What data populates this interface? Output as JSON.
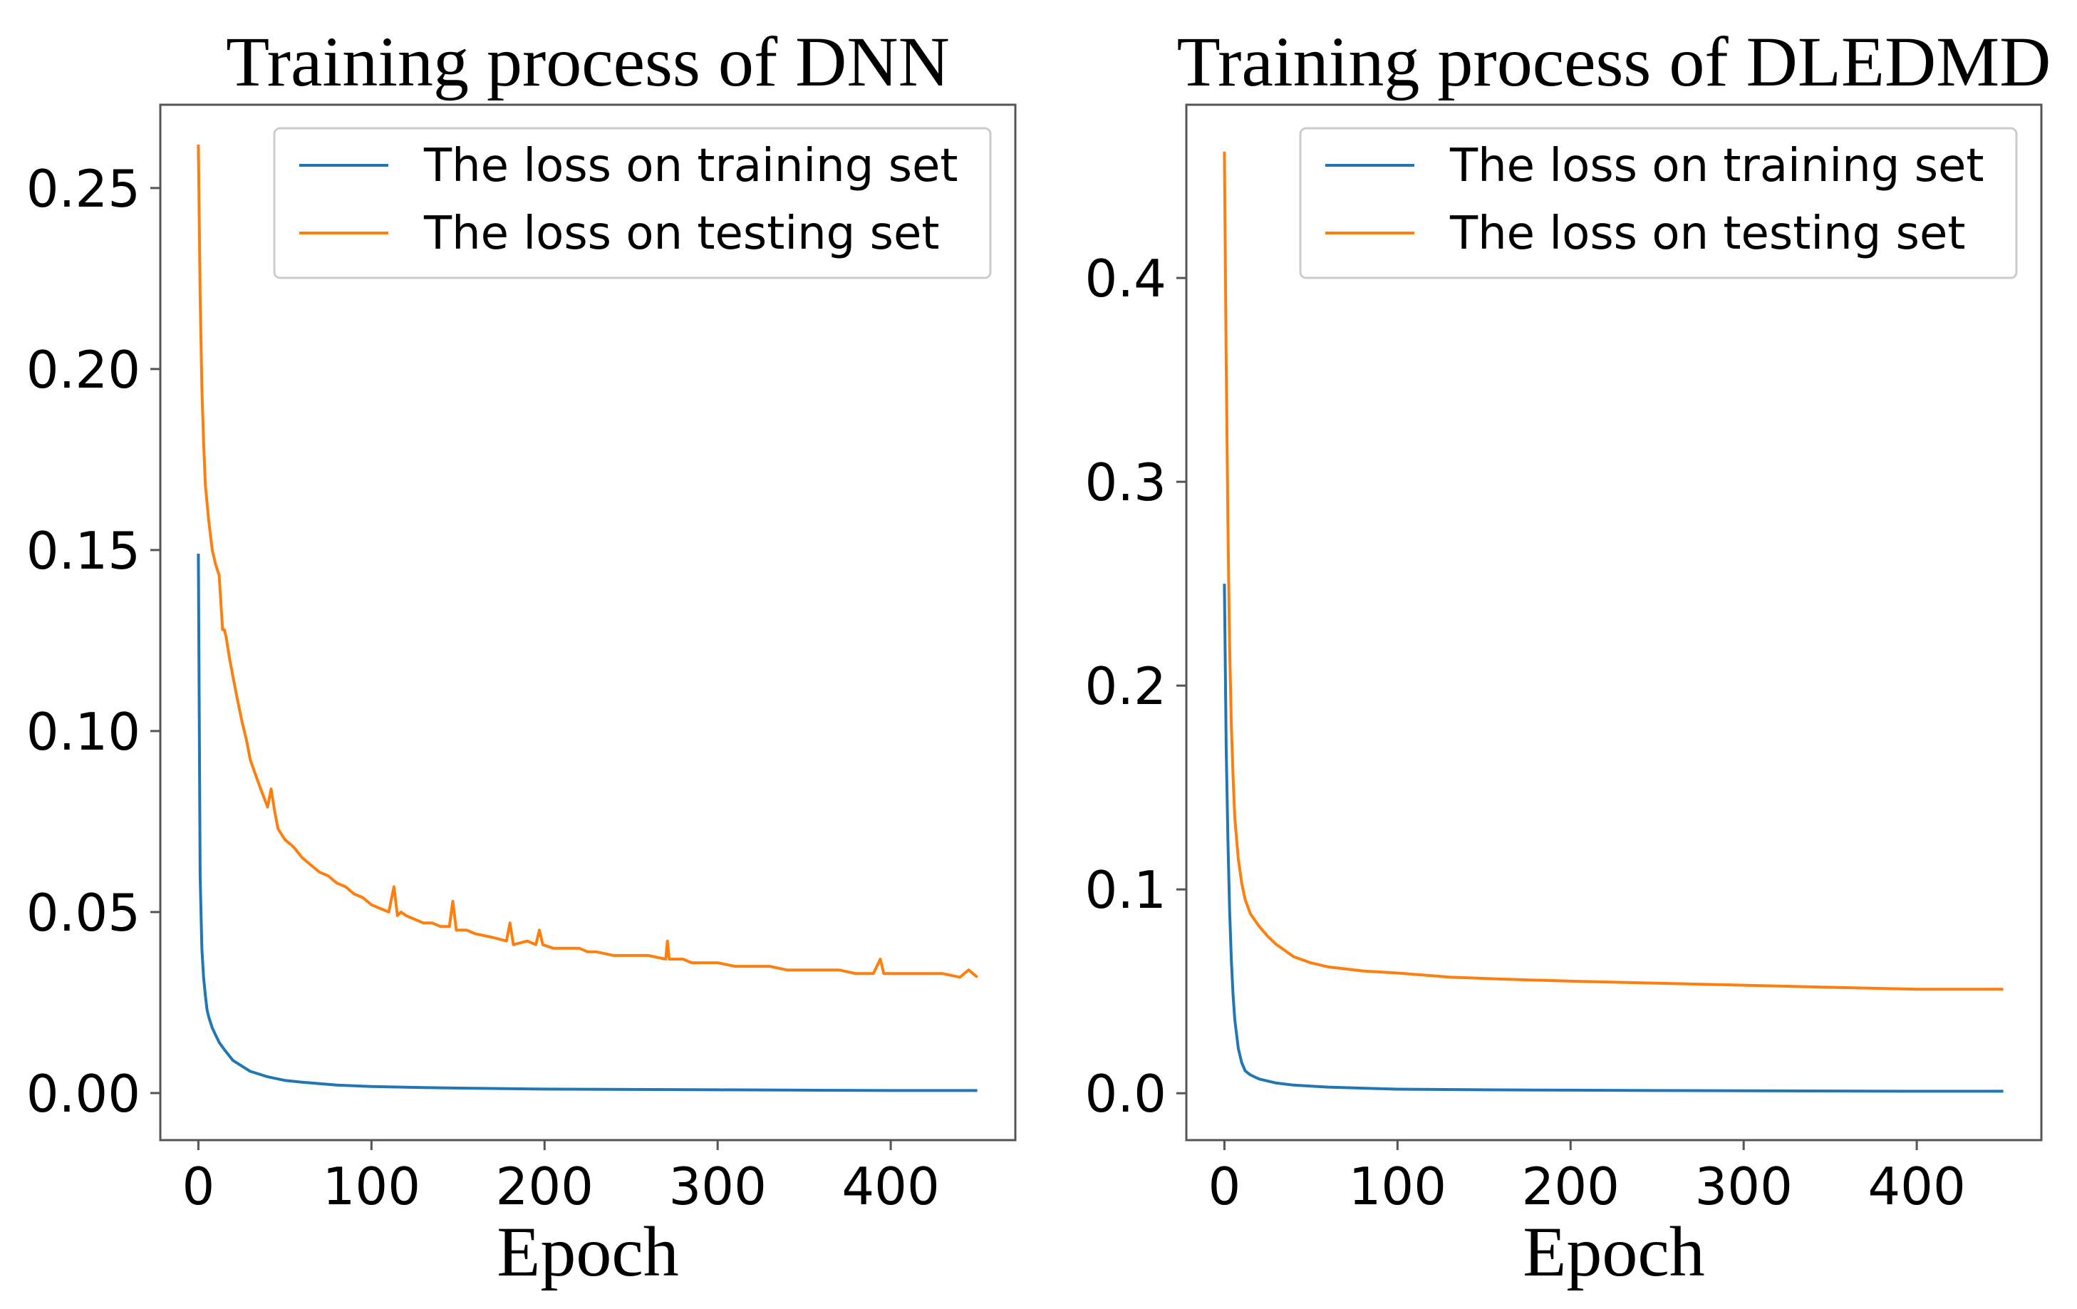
{
  "chart_data": [
    {
      "type": "line",
      "title": "Training process of DNN",
      "xlabel": "Epoch",
      "ylabel": "",
      "xlim": [
        -22,
        472
      ],
      "ylim": [
        -0.013,
        0.273
      ],
      "xticks": [
        0,
        100,
        200,
        300,
        400
      ],
      "xtick_labels": [
        "0",
        "100",
        "200",
        "300",
        "400"
      ],
      "yticks": [
        0.0,
        0.05,
        0.1,
        0.15,
        0.2,
        0.25
      ],
      "ytick_labels": [
        "0.00",
        "0.05",
        "0.10",
        "0.15",
        "0.20",
        "0.25"
      ],
      "legend_position": "top-right",
      "grid": false,
      "series": [
        {
          "name": "The loss on training set",
          "color": "#1f77b4",
          "x": [
            0,
            1,
            2,
            3,
            4,
            5,
            6,
            8,
            10,
            12,
            15,
            20,
            25,
            30,
            40,
            50,
            60,
            80,
            100,
            130,
            160,
            200,
            250,
            300,
            350,
            400,
            450
          ],
          "y": [
            0.149,
            0.06,
            0.04,
            0.032,
            0.027,
            0.023,
            0.021,
            0.018,
            0.016,
            0.014,
            0.012,
            0.009,
            0.0075,
            0.006,
            0.0045,
            0.0035,
            0.003,
            0.0022,
            0.0018,
            0.0015,
            0.0013,
            0.0011,
            0.001,
            0.0009,
            0.0008,
            0.0007,
            0.0007
          ]
        },
        {
          "name": "The loss on testing set",
          "color": "#ff7f0e",
          "x": [
            0,
            1,
            2,
            3,
            4,
            6,
            8,
            10,
            12,
            14,
            15,
            16,
            18,
            20,
            22,
            25,
            28,
            30,
            33,
            36,
            40,
            42,
            44,
            46,
            50,
            55,
            60,
            65,
            70,
            75,
            80,
            85,
            90,
            95,
            100,
            105,
            110,
            113,
            115,
            117,
            120,
            125,
            130,
            135,
            140,
            145,
            147,
            149,
            155,
            160,
            170,
            178,
            180,
            182,
            190,
            195,
            197,
            199,
            205,
            210,
            220,
            225,
            230,
            240,
            250,
            260,
            270,
            271,
            272,
            280,
            285,
            290,
            300,
            310,
            320,
            330,
            340,
            350,
            360,
            370,
            380,
            390,
            394,
            396,
            398,
            400,
            410,
            420,
            430,
            440,
            445,
            450
          ],
          "y": [
            0.262,
            0.22,
            0.195,
            0.18,
            0.168,
            0.158,
            0.15,
            0.146,
            0.143,
            0.128,
            0.128,
            0.126,
            0.12,
            0.115,
            0.11,
            0.103,
            0.097,
            0.092,
            0.088,
            0.084,
            0.079,
            0.084,
            0.078,
            0.073,
            0.07,
            0.068,
            0.065,
            0.063,
            0.061,
            0.06,
            0.058,
            0.057,
            0.055,
            0.054,
            0.052,
            0.051,
            0.05,
            0.057,
            0.049,
            0.05,
            0.049,
            0.048,
            0.047,
            0.047,
            0.046,
            0.046,
            0.053,
            0.045,
            0.045,
            0.044,
            0.043,
            0.042,
            0.047,
            0.041,
            0.042,
            0.041,
            0.045,
            0.041,
            0.04,
            0.04,
            0.04,
            0.039,
            0.039,
            0.038,
            0.038,
            0.038,
            0.037,
            0.042,
            0.037,
            0.037,
            0.036,
            0.036,
            0.036,
            0.035,
            0.035,
            0.035,
            0.034,
            0.034,
            0.034,
            0.034,
            0.033,
            0.033,
            0.037,
            0.033,
            0.033,
            0.033,
            0.033,
            0.033,
            0.033,
            0.032,
            0.034,
            0.032
          ]
        }
      ]
    },
    {
      "type": "line",
      "title": "Training process of DLEDMD",
      "xlabel": "Epoch",
      "ylabel": "",
      "xlim": [
        -22,
        472
      ],
      "ylim": [
        -0.023,
        0.485
      ],
      "xticks": [
        0,
        100,
        200,
        300,
        400
      ],
      "xtick_labels": [
        "0",
        "100",
        "200",
        "300",
        "400"
      ],
      "yticks": [
        0.0,
        0.1,
        0.2,
        0.3,
        0.4
      ],
      "ytick_labels": [
        "0.0",
        "0.1",
        "0.2",
        "0.3",
        "0.4"
      ],
      "legend_position": "top-right",
      "grid": false,
      "series": [
        {
          "name": "The loss on training set",
          "color": "#1f77b4",
          "x": [
            0,
            1,
            2,
            3,
            4,
            5,
            6,
            8,
            10,
            12,
            15,
            20,
            25,
            30,
            40,
            50,
            60,
            80,
            100,
            150,
            200,
            300,
            400,
            450
          ],
          "y": [
            0.25,
            0.17,
            0.125,
            0.09,
            0.065,
            0.048,
            0.036,
            0.022,
            0.015,
            0.011,
            0.009,
            0.007,
            0.006,
            0.005,
            0.004,
            0.0035,
            0.003,
            0.0025,
            0.002,
            0.0017,
            0.0015,
            0.0012,
            0.001,
            0.001
          ]
        },
        {
          "name": "The loss on testing set",
          "color": "#ff7f0e",
          "x": [
            0,
            1,
            2,
            3,
            4,
            5,
            6,
            8,
            10,
            12,
            15,
            20,
            25,
            30,
            35,
            40,
            50,
            60,
            80,
            100,
            130,
            160,
            200,
            250,
            300,
            350,
            400,
            450
          ],
          "y": [
            0.462,
            0.36,
            0.28,
            0.22,
            0.18,
            0.155,
            0.135,
            0.115,
            0.103,
            0.095,
            0.088,
            0.082,
            0.077,
            0.073,
            0.07,
            0.067,
            0.064,
            0.062,
            0.06,
            0.059,
            0.057,
            0.056,
            0.055,
            0.054,
            0.053,
            0.052,
            0.051,
            0.051
          ]
        }
      ]
    }
  ]
}
